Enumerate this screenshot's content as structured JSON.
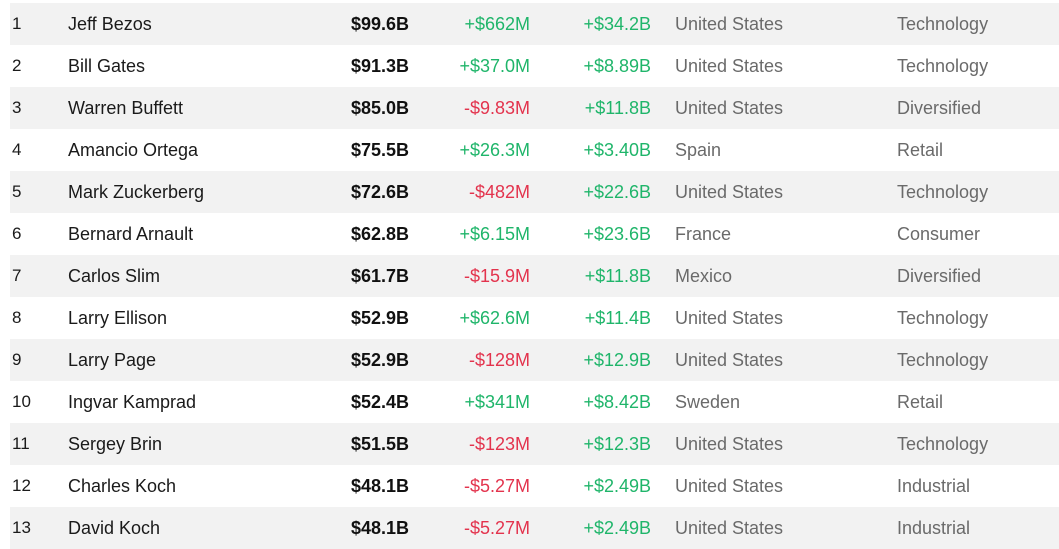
{
  "colors": {
    "positive": "#1fb56a",
    "negative": "#e3334d",
    "row_alt_background": "#f2f2f2"
  },
  "rows": [
    {
      "rank": "1",
      "name": "Jeff Bezos",
      "net_worth": "$99.6B",
      "last_change": "+$662M",
      "ytd_change": "+$34.2B",
      "country": "United States",
      "industry": "Technology",
      "last_change_sign": "pos",
      "ytd_sign": "pos"
    },
    {
      "rank": "2",
      "name": "Bill Gates",
      "net_worth": "$91.3B",
      "last_change": "+$37.0M",
      "ytd_change": "+$8.89B",
      "country": "United States",
      "industry": "Technology",
      "last_change_sign": "pos",
      "ytd_sign": "pos"
    },
    {
      "rank": "3",
      "name": "Warren Buffett",
      "net_worth": "$85.0B",
      "last_change": "-$9.83M",
      "ytd_change": "+$11.8B",
      "country": "United States",
      "industry": "Diversified",
      "last_change_sign": "neg",
      "ytd_sign": "pos"
    },
    {
      "rank": "4",
      "name": "Amancio Ortega",
      "net_worth": "$75.5B",
      "last_change": "+$26.3M",
      "ytd_change": "+$3.40B",
      "country": "Spain",
      "industry": "Retail",
      "last_change_sign": "pos",
      "ytd_sign": "pos"
    },
    {
      "rank": "5",
      "name": "Mark Zuckerberg",
      "net_worth": "$72.6B",
      "last_change": "-$482M",
      "ytd_change": "+$22.6B",
      "country": "United States",
      "industry": "Technology",
      "last_change_sign": "neg",
      "ytd_sign": "pos"
    },
    {
      "rank": "6",
      "name": "Bernard Arnault",
      "net_worth": "$62.8B",
      "last_change": "+$6.15M",
      "ytd_change": "+$23.6B",
      "country": "France",
      "industry": "Consumer",
      "last_change_sign": "pos",
      "ytd_sign": "pos"
    },
    {
      "rank": "7",
      "name": "Carlos Slim",
      "net_worth": "$61.7B",
      "last_change": "-$15.9M",
      "ytd_change": "+$11.8B",
      "country": "Mexico",
      "industry": "Diversified",
      "last_change_sign": "neg",
      "ytd_sign": "pos"
    },
    {
      "rank": "8",
      "name": "Larry Ellison",
      "net_worth": "$52.9B",
      "last_change": "+$62.6M",
      "ytd_change": "+$11.4B",
      "country": "United States",
      "industry": "Technology",
      "last_change_sign": "pos",
      "ytd_sign": "pos"
    },
    {
      "rank": "9",
      "name": "Larry Page",
      "net_worth": "$52.9B",
      "last_change": "-$128M",
      "ytd_change": "+$12.9B",
      "country": "United States",
      "industry": "Technology",
      "last_change_sign": "neg",
      "ytd_sign": "pos"
    },
    {
      "rank": "10",
      "name": "Ingvar Kamprad",
      "net_worth": "$52.4B",
      "last_change": "+$341M",
      "ytd_change": "+$8.42B",
      "country": "Sweden",
      "industry": "Retail",
      "last_change_sign": "pos",
      "ytd_sign": "pos"
    },
    {
      "rank": "11",
      "name": "Sergey Brin",
      "net_worth": "$51.5B",
      "last_change": "-$123M",
      "ytd_change": "+$12.3B",
      "country": "United States",
      "industry": "Technology",
      "last_change_sign": "neg",
      "ytd_sign": "pos"
    },
    {
      "rank": "12",
      "name": "Charles Koch",
      "net_worth": "$48.1B",
      "last_change": "-$5.27M",
      "ytd_change": "+$2.49B",
      "country": "United States",
      "industry": "Industrial",
      "last_change_sign": "neg",
      "ytd_sign": "pos"
    },
    {
      "rank": "13",
      "name": "David Koch",
      "net_worth": "$48.1B",
      "last_change": "-$5.27M",
      "ytd_change": "+$2.49B",
      "country": "United States",
      "industry": "Industrial",
      "last_change_sign": "neg",
      "ytd_sign": "pos"
    }
  ]
}
